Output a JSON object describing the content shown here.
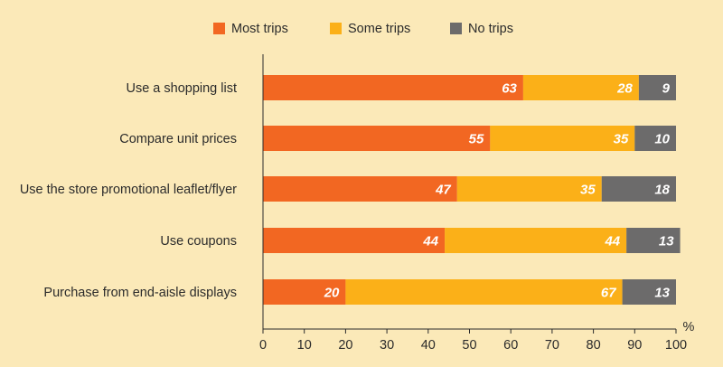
{
  "chart_data": {
    "type": "bar",
    "orientation": "horizontal",
    "stacked": true,
    "categories": [
      "Use a shopping list",
      "Compare unit prices",
      "Use the store promotional leaflet/flyer",
      "Use coupons",
      "Purchase from end-aisle displays"
    ],
    "series": [
      {
        "name": "Most trips",
        "color": "#f26722",
        "values": [
          63,
          55,
          47,
          44,
          20
        ]
      },
      {
        "name": "Some trips",
        "color": "#fbb018",
        "values": [
          28,
          35,
          35,
          44,
          67
        ]
      },
      {
        "name": "No trips",
        "color": "#6c6b6b",
        "values": [
          9,
          10,
          18,
          13,
          13
        ]
      }
    ],
    "xlim": [
      0,
      100
    ],
    "xticks": [
      0,
      10,
      20,
      30,
      40,
      50,
      60,
      70,
      80,
      90,
      100
    ],
    "xunit": "%",
    "grid": false,
    "legend_position": "top-center"
  }
}
